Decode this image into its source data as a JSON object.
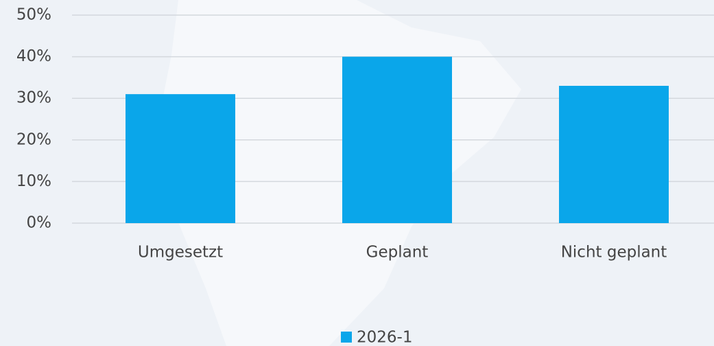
{
  "chart_data": {
    "type": "bar",
    "categories": [
      "Umgesetzt",
      "Geplant",
      "Nicht geplant"
    ],
    "series": [
      {
        "name": "2026-1",
        "color": "#0aa6ea",
        "values": [
          31,
          40,
          33
        ]
      }
    ],
    "ylim": [
      0,
      50
    ],
    "yticks": [
      {
        "value": 0,
        "label": "0%"
      },
      {
        "value": 10,
        "label": "10%"
      },
      {
        "value": 20,
        "label": "20%"
      },
      {
        "value": 30,
        "label": "30%"
      },
      {
        "value": 40,
        "label": "40%"
      },
      {
        "value": 50,
        "label": "50%"
      }
    ],
    "grid": true,
    "legend": "bottom"
  }
}
